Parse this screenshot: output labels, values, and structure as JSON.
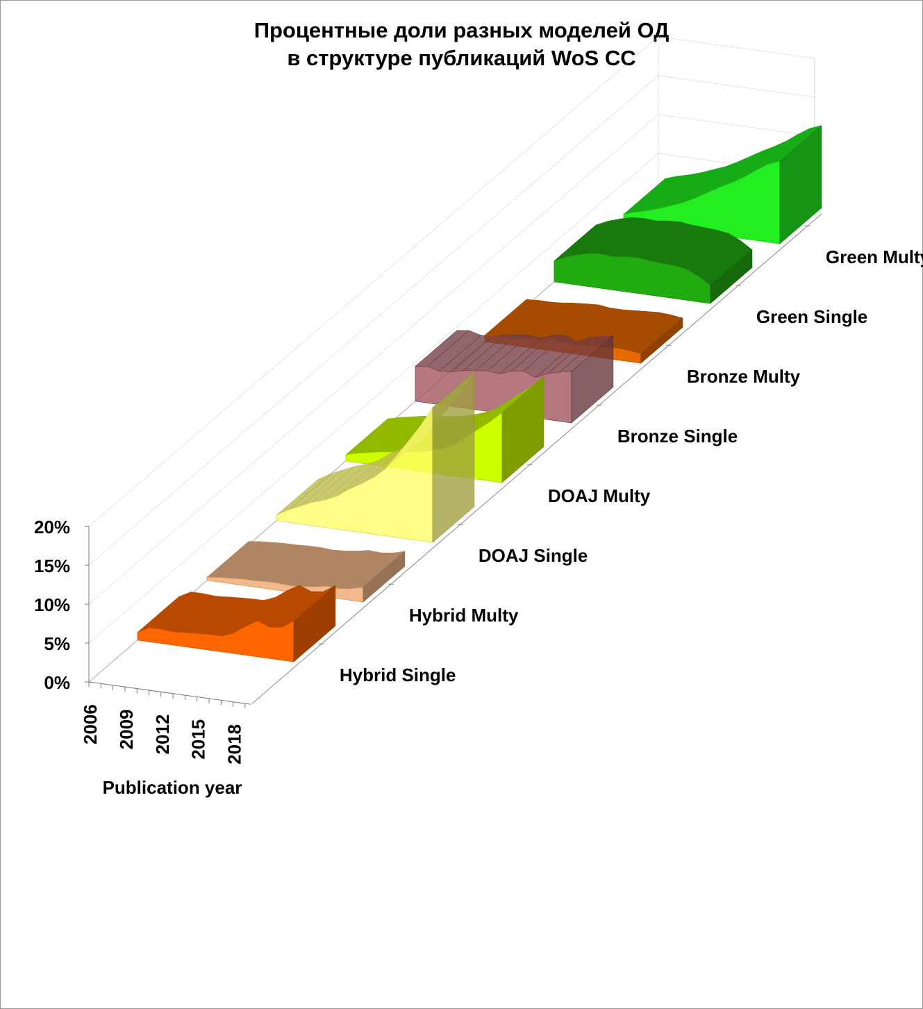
{
  "title": {
    "line1": "Процентные доли разных моделей ОД",
    "line2": "в структуре публикаций WoS CC"
  },
  "chart_data": {
    "type": "area",
    "subtype": "3d-area",
    "title": "Процентные доли разных моделей ОД в структуре публикаций WoS CC",
    "xlabel": "Publication year",
    "ylabel": "",
    "x": [
      2006,
      2007,
      2008,
      2009,
      2010,
      2011,
      2012,
      2013,
      2014,
      2015,
      2016,
      2017,
      2018,
      2019
    ],
    "x_tick_labels": [
      "2006",
      "2009",
      "2012",
      "2015",
      "2018"
    ],
    "y_tick_labels": [
      "0%",
      "5%",
      "10%",
      "15%",
      "20%"
    ],
    "ylim": [
      0,
      20
    ],
    "y_unit": "%",
    "grid": true,
    "series": [
      {
        "name": "Hybrid Single",
        "color": "#ff6600",
        "values": [
          1.0,
          1.8,
          1.8,
          1.7,
          1.8,
          1.9,
          2.0,
          2.0,
          2.6,
          3.7,
          4.6,
          4.0,
          4.2,
          5.2
        ]
      },
      {
        "name": "Hybrid Multy",
        "color": "#f4b98a",
        "values": [
          0.4,
          0.6,
          0.7,
          0.8,
          0.8,
          0.9,
          0.9,
          0.8,
          0.9,
          1.1,
          1.4,
          1.3,
          1.5,
          1.9
        ]
      },
      {
        "name": "DOAJ Single",
        "color": "#ffff66",
        "values": [
          0.7,
          1.6,
          2.3,
          3.0,
          3.5,
          4.2,
          5.3,
          6.2,
          7.2,
          8.5,
          10.5,
          12.6,
          14.8,
          17.3
        ]
      },
      {
        "name": "DOAJ Multy",
        "color": "#ccff00",
        "values": [
          0.8,
          1.2,
          1.5,
          1.8,
          2.0,
          2.2,
          2.4,
          2.8,
          3.3,
          4.0,
          5.2,
          6.4,
          7.6,
          9.0
        ]
      },
      {
        "name": "Bronze Single",
        "color": "#a0525a",
        "values": [
          4.5,
          4.7,
          4.3,
          4.4,
          4.8,
          5.0,
          5.2,
          5.0,
          5.6,
          5.8,
          5.2,
          5.9,
          6.3,
          6.6
        ]
      },
      {
        "name": "Bronze Multy",
        "color": "#e66a00",
        "values": [
          0.8,
          0.9,
          0.9,
          1.0,
          1.2,
          1.3,
          1.4,
          1.2,
          1.2,
          1.3,
          1.4,
          1.5,
          1.4,
          1.2
        ]
      },
      {
        "name": "Green Single",
        "color": "#22aa11",
        "values": [
          2.7,
          3.4,
          3.9,
          4.3,
          4.4,
          4.3,
          4.5,
          4.6,
          4.4,
          4.3,
          4.2,
          4.0,
          3.3,
          2.3
        ]
      },
      {
        "name": "Green Multy",
        "color": "#22ee22",
        "values": [
          1.0,
          1.5,
          1.9,
          2.4,
          3.0,
          3.6,
          4.4,
          5.3,
          6.2,
          7.0,
          7.9,
          9.0,
          10.0,
          10.6
        ]
      }
    ],
    "legend": "series labels on depth axis"
  }
}
